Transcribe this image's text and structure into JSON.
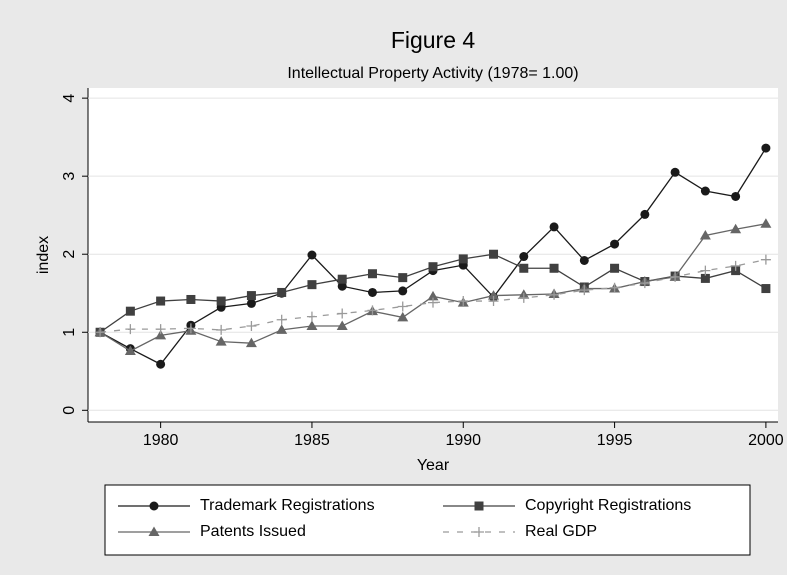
{
  "chart_data": {
    "type": "line",
    "title": "Figure 4",
    "subtitle": "Intellectual Property Activity (1978= 1.00)",
    "x_label": "Year",
    "y_label": "index",
    "x": [
      1978,
      1979,
      1980,
      1981,
      1982,
      1983,
      1984,
      1985,
      1986,
      1987,
      1988,
      1989,
      1990,
      1991,
      1992,
      1993,
      1994,
      1995,
      1996,
      1997,
      1998,
      1999,
      2000
    ],
    "series": [
      {
        "name": "Trademark Registrations",
        "color": "#1a1a1a",
        "marker": "circle",
        "dash": false,
        "values": [
          1.0,
          0.79,
          0.59,
          1.09,
          1.32,
          1.37,
          1.5,
          1.99,
          1.59,
          1.51,
          1.53,
          1.79,
          1.86,
          1.45,
          1.97,
          2.35,
          1.92,
          2.13,
          2.51,
          3.05,
          2.81,
          2.74,
          3.36
        ]
      },
      {
        "name": "Copyright Registrations",
        "color": "#404040",
        "marker": "square",
        "dash": false,
        "values": [
          1.0,
          1.27,
          1.4,
          1.42,
          1.4,
          1.47,
          1.51,
          1.61,
          1.68,
          1.75,
          1.7,
          1.84,
          1.94,
          2.0,
          1.82,
          1.82,
          1.58,
          1.82,
          1.65,
          1.72,
          1.69,
          1.79,
          1.56
        ]
      },
      {
        "name": "Patents Issued",
        "color": "#666666",
        "marker": "triangle",
        "dash": false,
        "values": [
          1.0,
          0.76,
          0.96,
          1.02,
          0.88,
          0.86,
          1.03,
          1.08,
          1.08,
          1.27,
          1.19,
          1.46,
          1.38,
          1.47,
          1.48,
          1.49,
          1.56,
          1.56,
          1.65,
          1.71,
          2.24,
          2.32,
          2.39
        ]
      },
      {
        "name": "Real GDP",
        "color": "#9a9a9a",
        "marker": "plus",
        "dash": true,
        "values": [
          1.0,
          1.04,
          1.04,
          1.05,
          1.03,
          1.08,
          1.16,
          1.2,
          1.24,
          1.28,
          1.33,
          1.38,
          1.4,
          1.4,
          1.44,
          1.48,
          1.54,
          1.57,
          1.63,
          1.71,
          1.79,
          1.85,
          1.93
        ]
      }
    ],
    "xlim": [
      1977.6,
      2000.4
    ],
    "xticks": [
      1980,
      1985,
      1990,
      1995,
      2000
    ],
    "ylim": [
      -0.15,
      4.13
    ],
    "yticks": [
      0,
      1,
      2,
      3,
      4
    ],
    "grid": true,
    "legend": "bottom"
  }
}
